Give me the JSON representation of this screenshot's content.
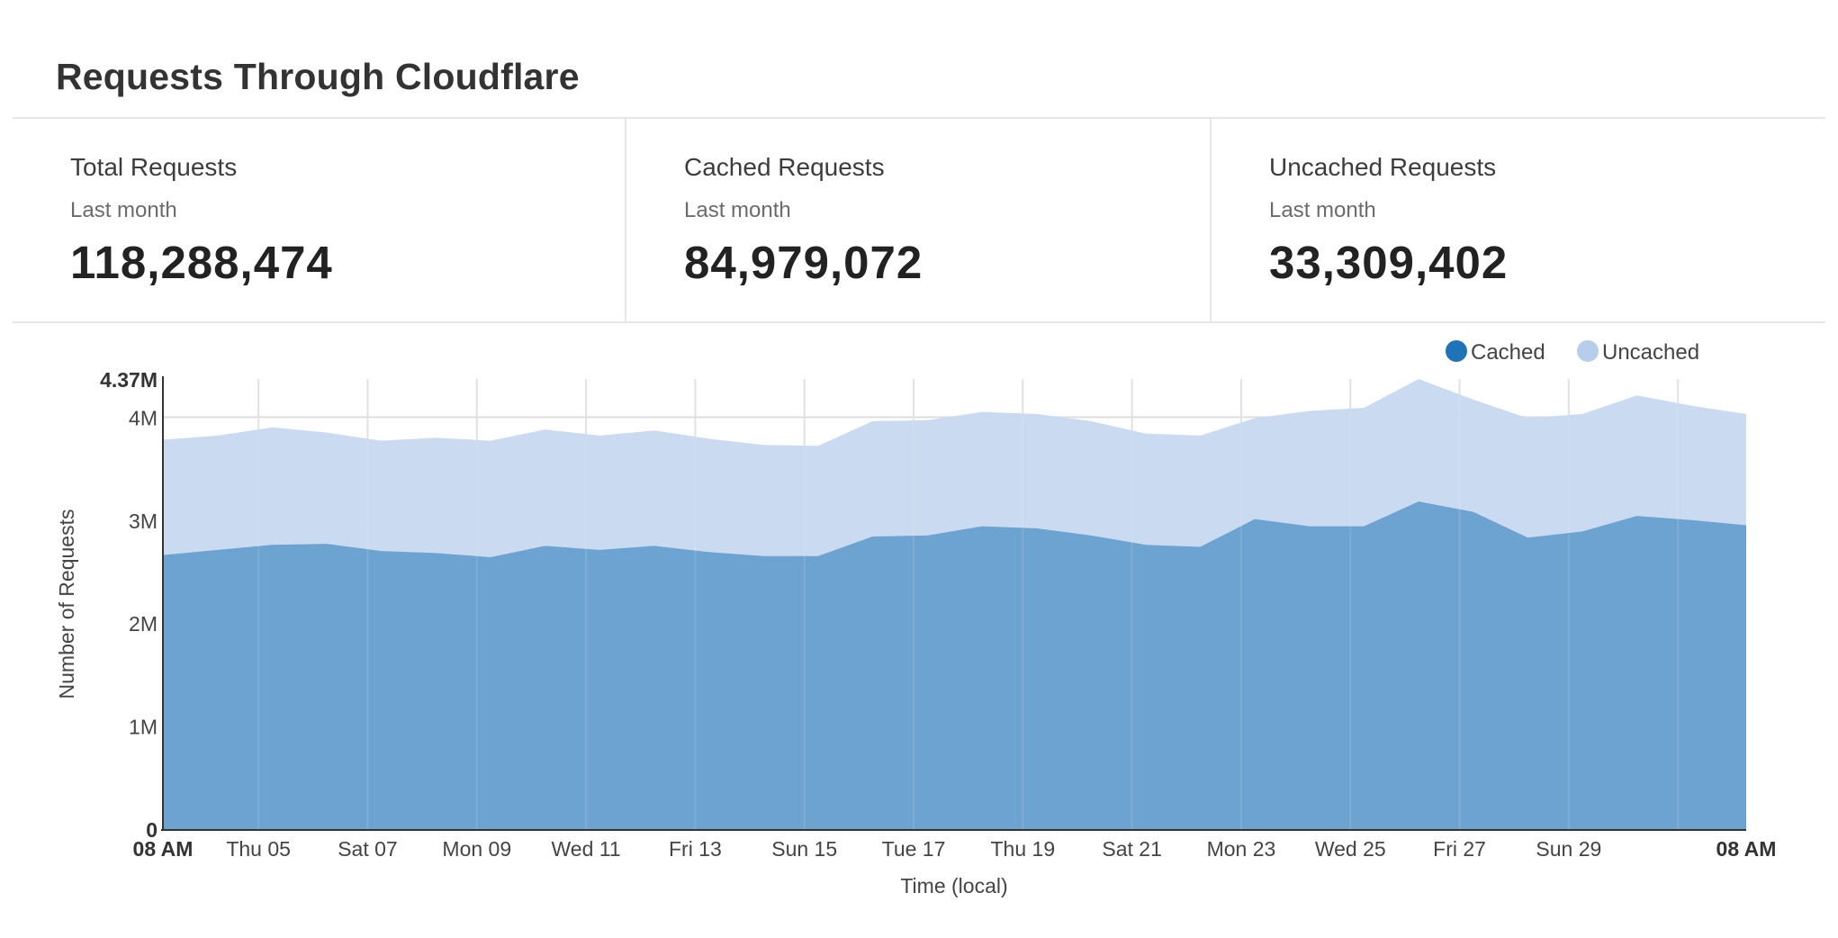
{
  "header": {
    "title": "Requests Through Cloudflare"
  },
  "stats": [
    {
      "label": "Total Requests",
      "period": "Last month",
      "value": "118,288,474"
    },
    {
      "label": "Cached Requests",
      "period": "Last month",
      "value": "84,979,072"
    },
    {
      "label": "Uncached Requests",
      "period": "Last month",
      "value": "33,309,402"
    }
  ],
  "chart_data": {
    "type": "area",
    "stacked": true,
    "title": "",
    "xlabel": "Time (local)",
    "ylabel": "Number of Requests",
    "ylim": [
      0,
      4370000
    ],
    "y_ticks": [
      {
        "value": 0,
        "label": "0",
        "bold": true
      },
      {
        "value": 1000000,
        "label": "1M",
        "bold": false
      },
      {
        "value": 2000000,
        "label": "2M",
        "bold": false
      },
      {
        "value": 3000000,
        "label": "3M",
        "bold": false
      },
      {
        "value": 4000000,
        "label": "4M",
        "bold": false
      },
      {
        "value": 4370000,
        "label": "4.37M",
        "bold": true
      }
    ],
    "x_ticks": [
      {
        "index": 0,
        "label": "08 AM",
        "bold": true,
        "grid": false
      },
      {
        "index": 1.75,
        "label": "Thu 05",
        "bold": false,
        "grid": true
      },
      {
        "index": 3.75,
        "label": "Sat 07",
        "bold": false,
        "grid": true
      },
      {
        "index": 5.75,
        "label": "Mon 09",
        "bold": false,
        "grid": true
      },
      {
        "index": 7.75,
        "label": "Wed 11",
        "bold": false,
        "grid": true
      },
      {
        "index": 9.75,
        "label": "Fri 13",
        "bold": false,
        "grid": true
      },
      {
        "index": 11.75,
        "label": "Sun 15",
        "bold": false,
        "grid": true
      },
      {
        "index": 13.75,
        "label": "Tue 17",
        "bold": false,
        "grid": true
      },
      {
        "index": 15.75,
        "label": "Thu 19",
        "bold": false,
        "grid": true
      },
      {
        "index": 17.75,
        "label": "Sat 21",
        "bold": false,
        "grid": true
      },
      {
        "index": 19.75,
        "label": "Mon 23",
        "bold": false,
        "grid": true
      },
      {
        "index": 21.75,
        "label": "Wed 25",
        "bold": false,
        "grid": true
      },
      {
        "index": 23.75,
        "label": "Fri 27",
        "bold": false,
        "grid": true
      },
      {
        "index": 25.75,
        "label": "Sun 29",
        "bold": false,
        "grid": true
      },
      {
        "index": 29,
        "label": "08 AM",
        "bold": true,
        "grid": false
      }
    ],
    "extra_grid_indices": [
      27.75
    ],
    "point_count": 30,
    "legend": {
      "position": "top-right"
    },
    "series": [
      {
        "name": "Cached",
        "color": "#1f73b7",
        "fill": "#6aa1cf",
        "values": [
          2660000,
          2710000,
          2760000,
          2770000,
          2700000,
          2680000,
          2640000,
          2750000,
          2710000,
          2750000,
          2690000,
          2650000,
          2650000,
          2840000,
          2850000,
          2940000,
          2920000,
          2850000,
          2760000,
          2740000,
          3010000,
          2940000,
          2940000,
          3180000,
          3080000,
          2830000,
          2890000,
          3040000,
          3000000,
          2950000
        ]
      },
      {
        "name": "Uncached",
        "color": "#b7cdec",
        "fill": "#c7d8f0",
        "values": [
          1120000,
          1110000,
          1140000,
          1080000,
          1070000,
          1120000,
          1130000,
          1130000,
          1110000,
          1120000,
          1100000,
          1080000,
          1070000,
          1120000,
          1120000,
          1110000,
          1110000,
          1110000,
          1080000,
          1080000,
          980000,
          1120000,
          1150000,
          1190000,
          1090000,
          1160000,
          1140000,
          1170000,
          1110000,
          1080000
        ]
      }
    ]
  }
}
